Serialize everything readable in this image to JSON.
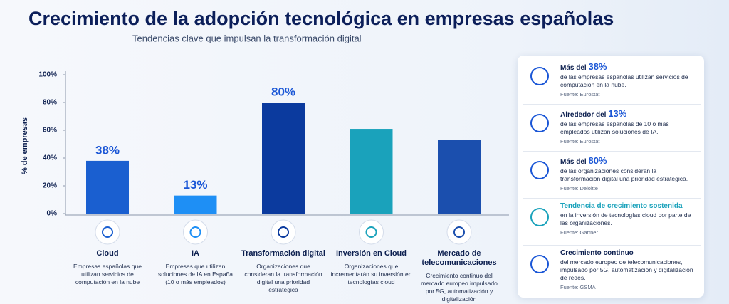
{
  "chart_data": {
    "type": "bar",
    "title": "Crecimiento de la adopción tecnológica en empresas españolas",
    "subtitle": "Tendencias clave que impulsan la transformación digital",
    "y_label": "% de empresas",
    "categories": [
      "Cloud",
      "IA",
      "Transformación digital",
      "Inversión en Cloud",
      "Mercado de telecomunicaciones"
    ],
    "descriptions": [
      "Empresas españolas que utilizan servicios de computación en la nube",
      "Empresas que utilizan soluciones de IA en España (10 o más empleados)",
      "Organizaciones que consideran la transformación digital una prioridad estratégica",
      "Organizaciones que incrementarán su inversión en tecnologías cloud",
      "Crecimiento continuo del mercado europeo impulsado por 5G, automatización y digitalización"
    ],
    "values": [
      38,
      13,
      80,
      61,
      53
    ],
    "value_labels": [
      "38%",
      "13%",
      "80%",
      null,
      null
    ],
    "colors": [
      "#1a5fd0",
      "#1e8ff5",
      "#0b3a9e",
      "#1aa2bb",
      "#1b4fae"
    ],
    "ylim": [
      0,
      100
    ],
    "yticks": [
      {
        "value": 0,
        "label": "0%"
      },
      {
        "value": 20,
        "label": "20%"
      },
      {
        "value": 40,
        "label": "40%"
      },
      {
        "value": 60,
        "label": "60%"
      },
      {
        "value": 80,
        "label": "80%"
      },
      {
        "value": 100,
        "label": "100%"
      }
    ],
    "grid": false
  },
  "sidebar": {
    "cards": [
      {
        "title": "Más del",
        "highlight": "38%",
        "body": "de las empresas españolas utilizan servicios de computación en la nube.",
        "source": "Fuente: Eurostat"
      },
      {
        "title": "Alrededor del",
        "highlight": "13%",
        "body": "de las empresas españolas de 10 o más empleados utilizan soluciones de IA.",
        "source": "Fuente: Eurostat"
      },
      {
        "title": "Más del",
        "highlight": "80%",
        "body": "de las organizaciones consideran la transformación digital una prioridad estratégica.",
        "source": "Fuente: Deloitte"
      },
      {
        "title": "Tendencia de crecimiento sostenida",
        "body": "en la inversión de tecnologías cloud por parte de las organizaciones.",
        "source": "Fuente: Gartner"
      },
      {
        "title": "Crecimiento continuo",
        "body": "del mercado europeo de telecomunicaciones, impulsado por 5G, automatización y digitalización de redes.",
        "source": "Fuente: GSMA"
      }
    ]
  }
}
